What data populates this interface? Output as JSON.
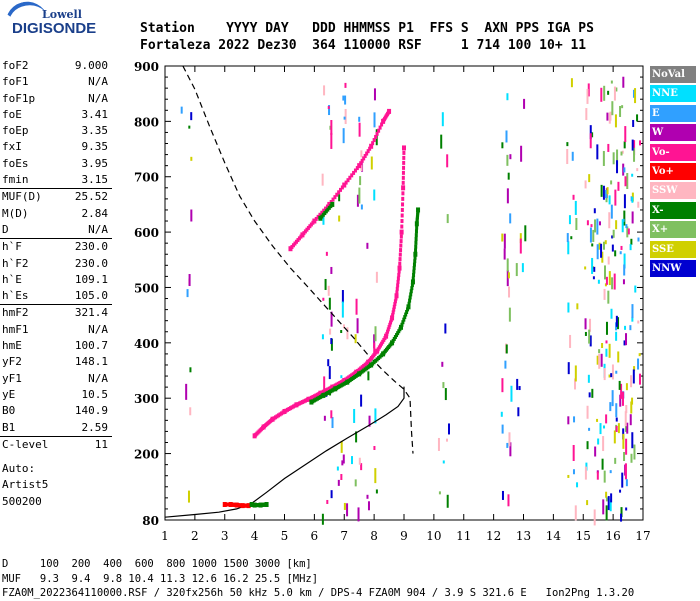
{
  "logo": {
    "brand": "Lowell",
    "product": "DIGISONDE"
  },
  "header": {
    "line1": "Station    YYYY DAY   DDD HHMMSS P1  FFS S  AXN PPS IGA PS",
    "line2": "Fortaleza 2022 Dez30  364 110000 RSF     1 714 100 10+ 11"
  },
  "parameters": [
    {
      "label": "foF2",
      "value": "9.000"
    },
    {
      "label": "foF1",
      "value": "N/A"
    },
    {
      "label": "foF1p",
      "value": "N/A"
    },
    {
      "label": "foE",
      "value": "3.41"
    },
    {
      "label": "foEp",
      "value": "3.35"
    },
    {
      "label": "fxI",
      "value": "9.35"
    },
    {
      "label": "foEs",
      "value": "3.95"
    },
    {
      "label": "fmin",
      "value": "3.15"
    },
    {
      "label": "MUF(D)",
      "value": "25.52"
    },
    {
      "label": "M(D)",
      "value": "2.84"
    },
    {
      "label": "D",
      "value": "N/A"
    },
    {
      "label": "h`F",
      "value": "230.0"
    },
    {
      "label": "h`F2",
      "value": "230.0"
    },
    {
      "label": "h`E",
      "value": "109.1"
    },
    {
      "label": "h`Es",
      "value": "105.0"
    },
    {
      "label": "hmF2",
      "value": "321.4"
    },
    {
      "label": "hmF1",
      "value": "N/A"
    },
    {
      "label": "hmE",
      "value": "100.7"
    },
    {
      "label": "yF2",
      "value": "148.1"
    },
    {
      "label": "yF1",
      "value": "N/A"
    },
    {
      "label": "yE",
      "value": "10.5"
    },
    {
      "label": "B0",
      "value": "140.9"
    },
    {
      "label": "B1",
      "value": "2.59"
    },
    {
      "label": "C-level",
      "value": "11"
    }
  ],
  "autoscaling": {
    "line1": "Auto:",
    "line2": "Artist5",
    "line3": "500200"
  },
  "legend": [
    {
      "label": "NoVal",
      "color": "#808080"
    },
    {
      "label": "NNE",
      "color": "#00e0ff"
    },
    {
      "label": "E",
      "color": "#30a0ff"
    },
    {
      "label": "W",
      "color": "#b000b0"
    },
    {
      "label": "Vo-",
      "color": "#ff1493"
    },
    {
      "label": "Vo+",
      "color": "#ff0000"
    },
    {
      "label": "SSW",
      "color": "#ffb6c1"
    },
    {
      "label": "X-",
      "color": "#008000"
    },
    {
      "label": "X+",
      "color": "#7fc060"
    },
    {
      "label": "SSE",
      "color": "#d0d000"
    },
    {
      "label": "NNW",
      "color": "#0000d0"
    }
  ],
  "footer": {
    "line1": "D     100  200  400  600  800 1000 1500 3000 [km]",
    "line2": "MUF   9.3  9.4  9.8 10.4 11.3 12.6 16.2 25.5 [MHz]",
    "line3": "FZA0M_2022364110000.RSF / 320fx256h 50 kHz 5.0 km / DPS-4 FZA0M 904 / 3.9 S 321.6 E   Ion2Png 1.3.20"
  },
  "chart_data": {
    "type": "scatter",
    "title": "",
    "xlabel": "",
    "ylabel": "",
    "xlim": [
      1,
      17
    ],
    "ylim": [
      80,
      900
    ],
    "x_ticks": [
      1,
      2,
      3,
      4,
      5,
      6,
      7,
      8,
      9,
      10,
      11,
      12,
      13,
      14,
      15,
      16,
      17
    ],
    "y_ticks": [
      80,
      200,
      300,
      400,
      500,
      600,
      700,
      800,
      900
    ],
    "series": [
      {
        "name": "Vo-",
        "color": "#ff1493",
        "points": [
          [
            4.0,
            232
          ],
          [
            4.3,
            248
          ],
          [
            4.6,
            262
          ],
          [
            5.0,
            276
          ],
          [
            5.4,
            288
          ],
          [
            5.8,
            298
          ],
          [
            6.2,
            309
          ],
          [
            6.6,
            320
          ],
          [
            7.0,
            332
          ],
          [
            7.4,
            347
          ],
          [
            7.8,
            365
          ],
          [
            8.1,
            385
          ],
          [
            8.4,
            412
          ],
          [
            8.6,
            445
          ],
          [
            8.75,
            485
          ],
          [
            8.85,
            535
          ],
          [
            8.92,
            600
          ],
          [
            8.97,
            680
          ],
          [
            9.0,
            752
          ]
        ]
      },
      {
        "name": "X-",
        "color": "#008000",
        "points": [
          [
            5.9,
            293
          ],
          [
            6.3,
            305
          ],
          [
            6.7,
            317
          ],
          [
            7.1,
            329
          ],
          [
            7.5,
            344
          ],
          [
            7.9,
            360
          ],
          [
            8.3,
            380
          ],
          [
            8.6,
            400
          ],
          [
            8.9,
            428
          ],
          [
            9.15,
            465
          ],
          [
            9.3,
            510
          ],
          [
            9.38,
            560
          ],
          [
            9.43,
            615
          ],
          [
            9.47,
            640
          ]
        ]
      },
      {
        "name": "Es",
        "color": "#ff0000",
        "points": [
          [
            3.0,
            108
          ],
          [
            3.2,
            108
          ],
          [
            3.4,
            107
          ],
          [
            3.6,
            106
          ],
          [
            3.8,
            106
          ]
        ]
      },
      {
        "name": "Es X",
        "color": "#008000",
        "points": [
          [
            3.9,
            108
          ],
          [
            4.0,
            107
          ],
          [
            4.2,
            107
          ],
          [
            4.4,
            108
          ]
        ]
      },
      {
        "name": "Spread upper",
        "color": "#ff1493",
        "points": [
          [
            5.2,
            570
          ],
          [
            5.6,
            595
          ],
          [
            6.0,
            620
          ],
          [
            6.5,
            650
          ],
          [
            7.0,
            685
          ],
          [
            7.5,
            720
          ],
          [
            7.9,
            755
          ],
          [
            8.3,
            800
          ],
          [
            8.5,
            818
          ]
        ]
      },
      {
        "name": "Spread upper X",
        "color": "#008000",
        "points": [
          [
            6.2,
            625
          ],
          [
            6.6,
            650
          ]
        ]
      }
    ],
    "profile_dashed": [
      [
        1.6,
        900
      ],
      [
        2.0,
        858
      ],
      [
        2.5,
        790
      ],
      [
        3.0,
        725
      ],
      [
        3.5,
        665
      ],
      [
        4.0,
        620
      ],
      [
        4.6,
        575
      ],
      [
        5.2,
        535
      ],
      [
        5.8,
        500
      ],
      [
        6.3,
        470
      ],
      [
        6.8,
        440
      ],
      [
        7.3,
        410
      ],
      [
        7.8,
        378
      ],
      [
        8.3,
        350
      ],
      [
        8.7,
        330
      ],
      [
        9.0,
        316
      ],
      [
        9.2,
        300
      ],
      [
        9.25,
        240
      ],
      [
        9.3,
        200
      ]
    ],
    "profile_solid": [
      [
        1.0,
        85
      ],
      [
        2.0,
        90
      ],
      [
        2.8,
        94
      ],
      [
        3.4,
        100
      ],
      [
        3.9,
        110
      ],
      [
        4.4,
        130
      ],
      [
        5.0,
        155
      ],
      [
        5.7,
        180
      ],
      [
        6.4,
        205
      ],
      [
        7.1,
        228
      ],
      [
        7.8,
        250
      ],
      [
        8.4,
        270
      ],
      [
        8.8,
        285
      ],
      [
        9.0,
        300
      ],
      [
        9.0,
        321
      ]
    ]
  }
}
